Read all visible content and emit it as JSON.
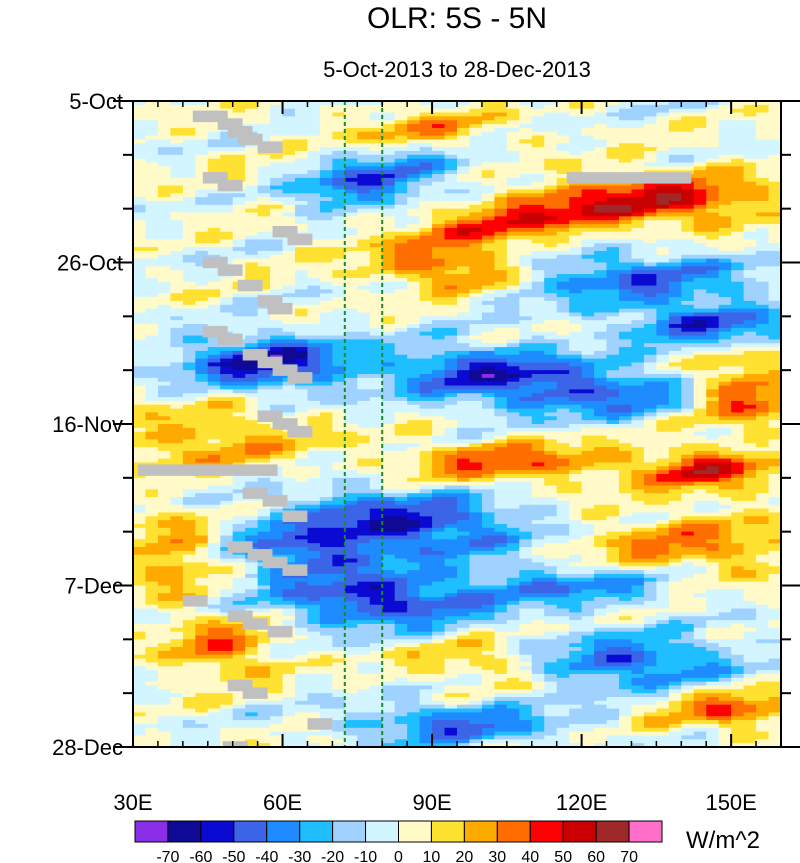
{
  "chart_data": {
    "type": "heatmap",
    "title": "OLR: 5S - 5N",
    "subtitle": "5-Oct-2013 to 28-Dec-2013",
    "xlabel": "",
    "ylabel": "",
    "xlim": [
      30,
      160
    ],
    "ylim_days": [
      0,
      84
    ],
    "x_ticks": [
      {
        "value": 30,
        "label": "30E"
      },
      {
        "value": 60,
        "label": "60E"
      },
      {
        "value": 90,
        "label": "90E"
      },
      {
        "value": 120,
        "label": "120E"
      },
      {
        "value": 150,
        "label": "150E"
      }
    ],
    "y_ticks": [
      {
        "value": 0,
        "label": "5-Oct"
      },
      {
        "value": 21,
        "label": "26-Oct"
      },
      {
        "value": 42,
        "label": "16-Nov"
      },
      {
        "value": 63,
        "label": "7-Dec"
      },
      {
        "value": 84,
        "label": "28-Dec"
      }
    ],
    "reference_lines_lon": [
      72.5,
      80
    ],
    "reference_line_color": "#1a8a2a",
    "colorbar": {
      "units": "W/m^2",
      "levels": [
        "-70",
        "-60",
        "-50",
        "-40",
        "-30",
        "-20",
        "-10",
        "0",
        "10",
        "20",
        "30",
        "40",
        "50",
        "60",
        "70"
      ],
      "colors": [
        "#8b2ee8",
        "#0f0a96",
        "#0a0ad2",
        "#3c64e6",
        "#1e8cff",
        "#1ebeff",
        "#a0d2ff",
        "#d2f5ff",
        "#fffac8",
        "#ffe132",
        "#ffaa00",
        "#ff6e00",
        "#ff0000",
        "#c80000",
        "#a02828",
        "#ff6ec8"
      ]
    },
    "missing_color": "#c0c0c0",
    "features": [
      {
        "lon": 75,
        "day": 11,
        "sign": -1,
        "amp": 52,
        "sx": 14,
        "sy": 2.5,
        "slope": -1.2
      },
      {
        "lon": 110,
        "day": 15,
        "sign": 1,
        "amp": 40,
        "sx": 20,
        "sy": 2.5,
        "slope": -1.0
      },
      {
        "lon": 140,
        "day": 13,
        "sign": 1,
        "amp": 35,
        "sx": 15,
        "sy": 2.5
      },
      {
        "lon": 90,
        "day": 4,
        "sign": 1,
        "amp": 25,
        "sx": 12,
        "sy": 2.0
      },
      {
        "lon": 95,
        "day": 22,
        "sign": 1,
        "amp": 40,
        "sx": 10,
        "sy": 2.0
      },
      {
        "lon": 130,
        "day": 23,
        "sign": -1,
        "amp": 40,
        "sx": 18,
        "sy": 2.5
      },
      {
        "lon": 145,
        "day": 29,
        "sign": -1,
        "amp": 45,
        "sx": 12,
        "sy": 2.0
      },
      {
        "lon": 57,
        "day": 34,
        "sign": -1,
        "amp": 60,
        "sx": 12,
        "sy": 2.5
      },
      {
        "lon": 100,
        "day": 35,
        "sign": -1,
        "amp": 45,
        "sx": 14,
        "sy": 2.5
      },
      {
        "lon": 125,
        "day": 38,
        "sign": -1,
        "amp": 40,
        "sx": 18,
        "sy": 2.5
      },
      {
        "lon": 152,
        "day": 38,
        "sign": 1,
        "amp": 50,
        "sx": 8,
        "sy": 3.0
      },
      {
        "lon": 45,
        "day": 44,
        "sign": 1,
        "amp": 25,
        "sx": 15,
        "sy": 3.0
      },
      {
        "lon": 105,
        "day": 47,
        "sign": 1,
        "amp": 38,
        "sx": 15,
        "sy": 2.0
      },
      {
        "lon": 145,
        "day": 48,
        "sign": 1,
        "amp": 45,
        "sx": 10,
        "sy": 2.0
      },
      {
        "lon": 85,
        "day": 55,
        "sign": -1,
        "amp": 55,
        "sx": 18,
        "sy": 3.0,
        "slope": 0.3
      },
      {
        "lon": 65,
        "day": 59,
        "sign": -1,
        "amp": 40,
        "sx": 10,
        "sy": 2.5
      },
      {
        "lon": 140,
        "day": 58,
        "sign": 1,
        "amp": 30,
        "sx": 18,
        "sy": 3.0
      },
      {
        "lon": 38,
        "day": 59,
        "sign": 1,
        "amp": 30,
        "sx": 6,
        "sy": 4.0
      },
      {
        "lon": 80,
        "day": 65,
        "sign": -1,
        "amp": 55,
        "sx": 15,
        "sy": 2.5
      },
      {
        "lon": 120,
        "day": 63,
        "sign": -1,
        "amp": 35,
        "sx": 15,
        "sy": 2.0
      },
      {
        "lon": 48,
        "day": 71,
        "sign": 1,
        "amp": 32,
        "sx": 8,
        "sy": 3.0
      },
      {
        "lon": 130,
        "day": 73,
        "sign": -1,
        "amp": 45,
        "sx": 15,
        "sy": 2.5
      },
      {
        "lon": 95,
        "day": 81,
        "sign": -1,
        "amp": 40,
        "sx": 15,
        "sy": 2.0
      },
      {
        "lon": 150,
        "day": 79,
        "sign": 1,
        "amp": 35,
        "sx": 10,
        "sy": 2.0
      },
      {
        "lon": 100,
        "day": 73,
        "sign": 1,
        "amp": 25,
        "sx": 10,
        "sy": 2.0
      },
      {
        "lon": 60,
        "day": 13,
        "sign": 1,
        "amp": 20,
        "sx": 10,
        "sy": 3.0
      }
    ],
    "missing_blocks": [
      {
        "lon": 40,
        "day": 65
      },
      {
        "lon": 42,
        "day": 2
      },
      {
        "lon": 44,
        "day": 2
      },
      {
        "lon": 47,
        "day": 3
      },
      {
        "lon": 49,
        "day": 4
      },
      {
        "lon": 51,
        "day": 5
      },
      {
        "lon": 55,
        "day": 6
      },
      {
        "lon": 44,
        "day": 10
      },
      {
        "lon": 47,
        "day": 11
      },
      {
        "lon": 58,
        "day": 17
      },
      {
        "lon": 61,
        "day": 18
      },
      {
        "lon": 44,
        "day": 21
      },
      {
        "lon": 47,
        "day": 22
      },
      {
        "lon": 51,
        "day": 24
      },
      {
        "lon": 55,
        "day": 26
      },
      {
        "lon": 57,
        "day": 27
      },
      {
        "lon": 44,
        "day": 30
      },
      {
        "lon": 47,
        "day": 31
      },
      {
        "lon": 52,
        "day": 33
      },
      {
        "lon": 55,
        "day": 34
      },
      {
        "lon": 58,
        "day": 35
      },
      {
        "lon": 61,
        "day": 36
      },
      {
        "lon": 55,
        "day": 41
      },
      {
        "lon": 58,
        "day": 42
      },
      {
        "lon": 61,
        "day": 43
      },
      {
        "lon": 52,
        "day": 51
      },
      {
        "lon": 56,
        "day": 52
      },
      {
        "lon": 60,
        "day": 54
      },
      {
        "lon": 49,
        "day": 58
      },
      {
        "lon": 53,
        "day": 59
      },
      {
        "lon": 56,
        "day": 60
      },
      {
        "lon": 60,
        "day": 61
      },
      {
        "lon": 49,
        "day": 67
      },
      {
        "lon": 52,
        "day": 68
      },
      {
        "lon": 57,
        "day": 69
      },
      {
        "lon": 49,
        "day": 76
      },
      {
        "lon": 52,
        "day": 77
      },
      {
        "lon": 65,
        "day": 81
      },
      {
        "lon": 48,
        "day": 84
      }
    ],
    "missing_strips": [
      {
        "lon_from": 31,
        "lon_to": 59,
        "day": 48
      },
      {
        "lon_from": 117,
        "lon_to": 142,
        "day": 10
      }
    ]
  }
}
